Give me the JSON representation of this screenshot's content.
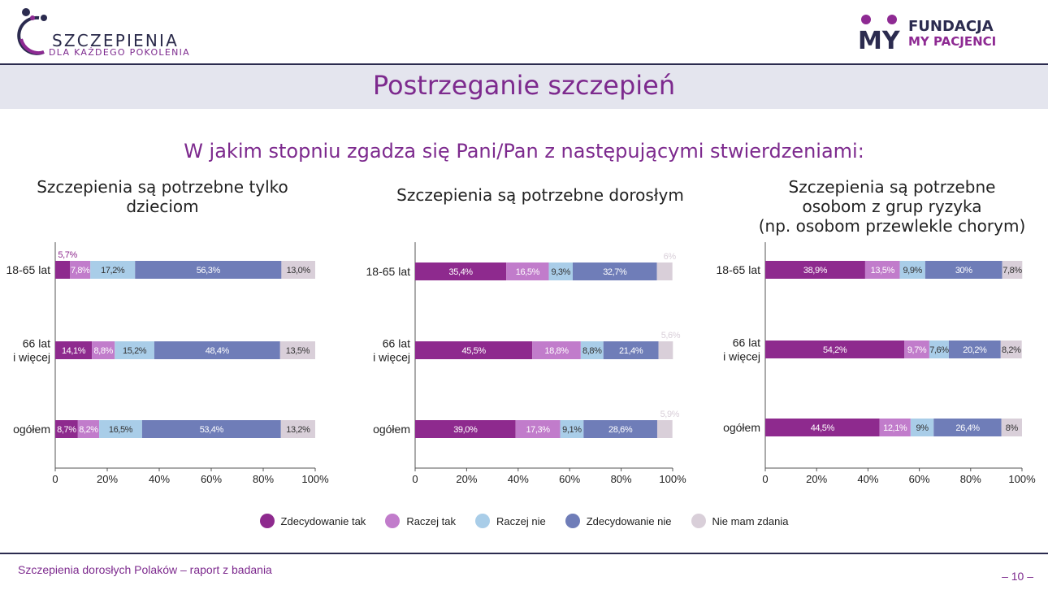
{
  "header": {
    "logo_left": {
      "brand": "SZCZEPIENIA",
      "tagline": "DLA KAŻDEGO POKOLENIA"
    },
    "logo_right": {
      "mark": "MY",
      "line1": "FUNDACJA",
      "line2": "MY PACJENCI"
    },
    "page_title": "Postrzeganie szczepień"
  },
  "question": "W jakim stopniu zgadza się Pani/Pan z następującymi stwierdzeniami:",
  "colors": {
    "zdecydowanie_tak": "#8e2a8e",
    "raczej_tak": "#c17ccb",
    "raczej_nie": "#a9cde8",
    "zdecydowanie_nie": "#6f7db8",
    "nie_mam_zdania": "#d9cfd9"
  },
  "legend": [
    "Zdecydowanie tak",
    "Raczej tak",
    "Raczej nie",
    "Zdecydowanie nie",
    "Nie mam zdania"
  ],
  "chart_data": [
    {
      "type": "bar",
      "stacked": true,
      "orientation": "horizontal",
      "title": "Szczepienia są potrzebne tylko dzieciom",
      "title_lines": [
        "Szczepienia są potrzebne tylko",
        "dzieciom"
      ],
      "categories": [
        [
          "18-65 lat"
        ],
        [
          "66 lat",
          "i więcej"
        ],
        [
          "ogółem"
        ]
      ],
      "xticks": [
        "0",
        "20%",
        "40%",
        "60%",
        "80%",
        "100%"
      ],
      "xlim": [
        0,
        100
      ],
      "series": [
        {
          "name": "Zdecydowanie tak",
          "values": [
            5.7,
            14.1,
            8.7
          ],
          "labels": [
            "5,7%",
            "14,1%",
            "8,7%"
          ]
        },
        {
          "name": "Raczej tak",
          "values": [
            7.8,
            8.8,
            8.2
          ],
          "labels": [
            "7,8%",
            "8,8%",
            "8,2%"
          ]
        },
        {
          "name": "Raczej nie",
          "values": [
            17.2,
            15.2,
            16.5
          ],
          "labels": [
            "17,2%",
            "15,2%",
            "16,5%"
          ]
        },
        {
          "name": "Zdecydowanie nie",
          "values": [
            56.3,
            48.4,
            53.4
          ],
          "labels": [
            "56,3%",
            "48,4%",
            "53,4%"
          ]
        },
        {
          "name": "Nie mam zdania",
          "values": [
            13.0,
            13.5,
            13.2
          ],
          "labels": [
            "13,0%",
            "13,5%",
            "13,2%"
          ]
        }
      ]
    },
    {
      "type": "bar",
      "stacked": true,
      "orientation": "horizontal",
      "title": "Szczepienia są potrzebne dorosłym",
      "title_lines": [
        "Szczepienia są potrzebne dorosłym"
      ],
      "categories": [
        [
          "18-65 lat"
        ],
        [
          "66 lat",
          "i więcej"
        ],
        [
          "ogółem"
        ]
      ],
      "xticks": [
        "0",
        "20%",
        "40%",
        "60%",
        "80%",
        "100%"
      ],
      "xlim": [
        0,
        100
      ],
      "series": [
        {
          "name": "Zdecydowanie tak",
          "values": [
            35.4,
            45.5,
            39.0
          ],
          "labels": [
            "35,4%",
            "45,5%",
            "39,0%"
          ]
        },
        {
          "name": "Raczej tak",
          "values": [
            16.5,
            18.8,
            17.3
          ],
          "labels": [
            "16,5%",
            "18,8%",
            "17,3%"
          ]
        },
        {
          "name": "Raczej nie",
          "values": [
            9.3,
            8.8,
            9.1
          ],
          "labels": [
            "9,3%",
            "8,8%",
            "9,1%"
          ]
        },
        {
          "name": "Zdecydowanie nie",
          "values": [
            32.7,
            21.4,
            28.6
          ],
          "labels": [
            "32,7%",
            "21,4%",
            "28,6%"
          ]
        },
        {
          "name": "Nie mam zdania",
          "values": [
            6.0,
            5.6,
            5.9
          ],
          "labels": [
            "6%",
            "5,6%",
            "5,9%"
          ]
        }
      ]
    },
    {
      "type": "bar",
      "stacked": true,
      "orientation": "horizontal",
      "title": "Szczepienia są potrzebne osobom z grup ryzyka (np. osobom przewlekle chorym)",
      "title_lines": [
        "Szczepienia są potrzebne",
        "osobom z grup ryzyka",
        "(np. osobom przewlekle chorym)"
      ],
      "categories": [
        [
          "18-65 lat"
        ],
        [
          "66 lat",
          "i więcej"
        ],
        [
          "ogółem"
        ]
      ],
      "xticks": [
        "0",
        "20%",
        "40%",
        "60%",
        "80%",
        "100%"
      ],
      "xlim": [
        0,
        100
      ],
      "series": [
        {
          "name": "Zdecydowanie tak",
          "values": [
            38.9,
            54.2,
            44.5
          ],
          "labels": [
            "38,9%",
            "54,2%",
            "44,5%"
          ]
        },
        {
          "name": "Raczej tak",
          "values": [
            13.5,
            9.7,
            12.1
          ],
          "labels": [
            "13,5%",
            "9,7%",
            "12,1%"
          ]
        },
        {
          "name": "Raczej nie",
          "values": [
            9.9,
            7.6,
            9.0
          ],
          "labels": [
            "9,9%",
            "7,6%",
            "9%"
          ]
        },
        {
          "name": "Zdecydowanie nie",
          "values": [
            30.0,
            20.2,
            26.4
          ],
          "labels": [
            "30%",
            "20,2%",
            "26,4%"
          ]
        },
        {
          "name": "Nie mam zdania",
          "values": [
            7.8,
            8.2,
            8.0
          ],
          "labels": [
            "7,8%",
            "8,2%",
            "8%"
          ]
        }
      ]
    }
  ],
  "footer": {
    "report": "Szczepienia dorosłych Polaków – raport z badania",
    "page": "– 10 –"
  }
}
